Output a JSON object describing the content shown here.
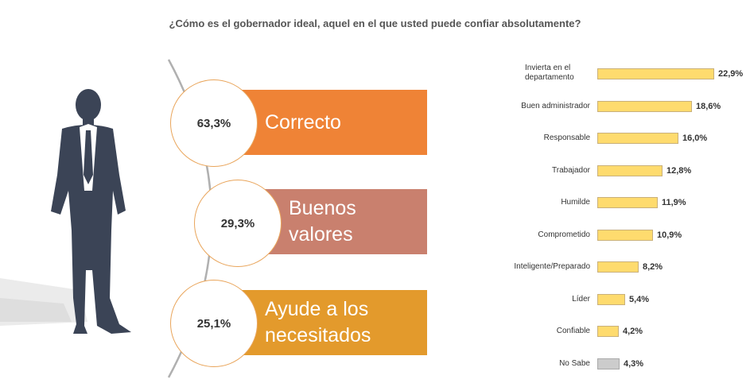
{
  "title": "¿Cómo es el gobernador  ideal, aquel en el que usted puede confiar absolutamente?",
  "colors": {
    "panel1": "#ef8336",
    "panel2": "#c9806e",
    "panel3": "#e39a2c",
    "bar": "#fedb6e",
    "bar_nosabe": "#cccccc",
    "figure": "#3b4456",
    "circle_border": "#e9a55b"
  },
  "highlights": [
    {
      "value": "63,3%",
      "label": "Correcto"
    },
    {
      "value": "29,3%",
      "label": "Buenos valores"
    },
    {
      "value": "25,1%",
      "label": "Ayude a los necesitados"
    }
  ],
  "chart_data": {
    "type": "bar",
    "orientation": "horizontal",
    "title": "¿Cómo es el gobernador  ideal, aquel en el que usted puede confiar absolutamente?",
    "categories": [
      "Invierta en el departamento",
      "Buen administrador",
      "Responsable",
      "Trabajador",
      "Humilde",
      "Comprometido",
      "Inteligente/Preparado",
      "Líder",
      "Confiable",
      "No Sabe"
    ],
    "values": [
      22.9,
      18.6,
      16.0,
      12.8,
      11.9,
      10.9,
      8.2,
      5.4,
      4.2,
      4.3
    ],
    "value_labels": [
      "22,9%",
      "18,6%",
      "16,0%",
      "12,8%",
      "11,9%",
      "10,9%",
      "8,2%",
      "5,4%",
      "4,2%",
      "4,3%"
    ],
    "xlim": [
      0,
      25
    ],
    "grid": false,
    "legend": "none"
  }
}
